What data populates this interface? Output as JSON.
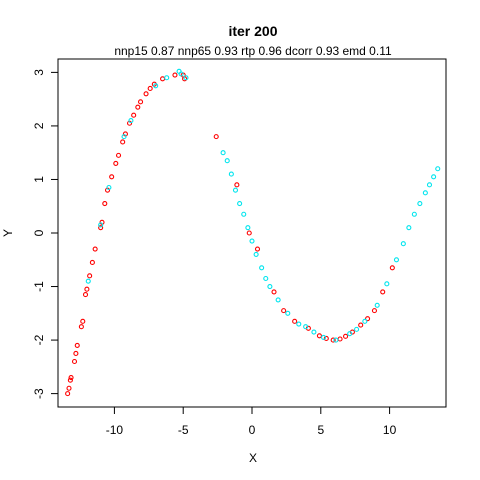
{
  "chart_data": {
    "type": "scatter",
    "title": "iter 200",
    "subtitle": "nnp15 0.87 nnp65 0.93 rtp 0.96 dcorr 0.93 emd 0.11",
    "xlabel": "X",
    "ylabel": "Y",
    "xlim": [
      -14.1,
      14.1
    ],
    "ylim": [
      -3.25,
      3.25
    ],
    "grid": false,
    "x_ticks": [
      -10,
      -5,
      0,
      5,
      10
    ],
    "x_tick_labels": [
      "-10",
      "-5",
      "0",
      "5",
      "10"
    ],
    "y_ticks": [
      -3,
      -2,
      -1,
      0,
      1,
      2,
      3
    ],
    "y_tick_labels": [
      "-3",
      "-2",
      "-1",
      "0",
      "1",
      "2",
      "3"
    ],
    "colors": {
      "red": "#ff0000",
      "cyan": "#00e5ee"
    },
    "series": [
      {
        "color": "#ff0000",
        "points": [
          [
            -13.4,
            -3.0
          ],
          [
            -13.3,
            -2.9
          ],
          [
            -13.2,
            -2.75
          ],
          [
            -13.15,
            -2.7
          ],
          [
            -12.9,
            -2.4
          ],
          [
            -12.8,
            -2.25
          ],
          [
            -12.7,
            -2.1
          ],
          [
            -12.4,
            -1.75
          ],
          [
            -12.3,
            -1.65
          ],
          [
            -12.1,
            -1.15
          ],
          [
            -12.0,
            -1.05
          ],
          [
            -11.8,
            -0.8
          ],
          [
            -11.6,
            -0.55
          ],
          [
            -11.4,
            -0.3
          ],
          [
            -11.0,
            0.1
          ],
          [
            -10.9,
            0.2
          ],
          [
            -10.7,
            0.55
          ],
          [
            -10.5,
            0.8
          ],
          [
            -10.2,
            1.05
          ],
          [
            -9.9,
            1.3
          ],
          [
            -9.7,
            1.45
          ],
          [
            -9.4,
            1.7
          ],
          [
            -9.2,
            1.85
          ],
          [
            -8.9,
            2.05
          ],
          [
            -8.6,
            2.2
          ],
          [
            -8.3,
            2.35
          ],
          [
            -8.1,
            2.45
          ],
          [
            -7.7,
            2.6
          ],
          [
            -7.4,
            2.7
          ],
          [
            -7.1,
            2.78
          ],
          [
            -6.5,
            2.88
          ],
          [
            -5.6,
            2.95
          ],
          [
            -5.0,
            2.95
          ],
          [
            -4.9,
            2.88
          ],
          [
            -2.6,
            1.8
          ],
          [
            -1.1,
            0.9
          ],
          [
            -0.2,
            0.0
          ],
          [
            0.4,
            -0.3
          ],
          [
            1.6,
            -1.1
          ],
          [
            2.3,
            -1.45
          ],
          [
            3.1,
            -1.65
          ],
          [
            4.1,
            -1.78
          ],
          [
            4.9,
            -1.92
          ],
          [
            5.4,
            -1.97
          ],
          [
            5.9,
            -2.0
          ],
          [
            6.4,
            -1.98
          ],
          [
            6.8,
            -1.93
          ],
          [
            7.3,
            -1.85
          ],
          [
            7.9,
            -1.72
          ],
          [
            8.4,
            -1.6
          ],
          [
            8.9,
            -1.45
          ],
          [
            9.5,
            -1.1
          ],
          [
            10.2,
            -0.65
          ]
        ]
      },
      {
        "color": "#00e5ee",
        "points": [
          [
            -11.9,
            -0.9
          ],
          [
            -11.0,
            0.15
          ],
          [
            -10.4,
            0.85
          ],
          [
            -9.3,
            1.8
          ],
          [
            -8.8,
            2.1
          ],
          [
            -7.0,
            2.75
          ],
          [
            -6.2,
            2.9
          ],
          [
            -5.3,
            3.02
          ],
          [
            -5.15,
            2.97
          ],
          [
            -4.8,
            2.9
          ],
          [
            -2.1,
            1.5
          ],
          [
            -1.8,
            1.35
          ],
          [
            -1.5,
            1.1
          ],
          [
            -1.2,
            0.8
          ],
          [
            -0.9,
            0.55
          ],
          [
            -0.6,
            0.35
          ],
          [
            -0.3,
            0.1
          ],
          [
            0.0,
            -0.15
          ],
          [
            0.3,
            -0.4
          ],
          [
            0.7,
            -0.65
          ],
          [
            1.0,
            -0.85
          ],
          [
            1.3,
            -1.0
          ],
          [
            1.9,
            -1.25
          ],
          [
            2.6,
            -1.5
          ],
          [
            3.4,
            -1.7
          ],
          [
            3.9,
            -1.75
          ],
          [
            4.5,
            -1.85
          ],
          [
            5.2,
            -1.95
          ],
          [
            6.1,
            -2.0
          ],
          [
            7.1,
            -1.88
          ],
          [
            7.6,
            -1.8
          ],
          [
            8.2,
            -1.65
          ],
          [
            9.1,
            -1.35
          ],
          [
            9.8,
            -0.95
          ],
          [
            10.5,
            -0.5
          ],
          [
            11.0,
            -0.2
          ],
          [
            11.4,
            0.1
          ],
          [
            11.8,
            0.35
          ],
          [
            12.2,
            0.55
          ],
          [
            12.6,
            0.75
          ],
          [
            12.9,
            0.9
          ],
          [
            13.2,
            1.05
          ],
          [
            13.5,
            1.2
          ]
        ]
      }
    ]
  }
}
